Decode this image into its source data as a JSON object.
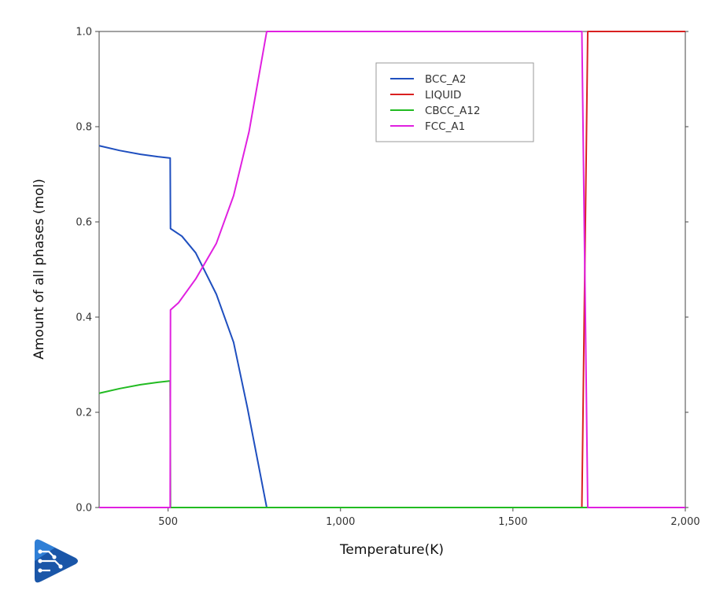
{
  "chart_data": {
    "type": "line",
    "title": "",
    "xlabel": "Temperature(K)",
    "ylabel": "Amount of all phases (mol)",
    "xlim": [
      300,
      2000
    ],
    "ylim": [
      0,
      1
    ],
    "x_ticks": [
      500,
      1000,
      1500,
      2000
    ],
    "x_tick_labels": [
      "500",
      "1,000",
      "1,500",
      "2,000"
    ],
    "y_ticks": [
      0,
      0.2,
      0.4,
      0.6,
      0.8,
      1.0
    ],
    "y_tick_labels": [
      "0.0",
      "0.2",
      "0.4",
      "0.6",
      "0.8",
      "1.0"
    ],
    "grid": false,
    "legend_position": "top-center",
    "series": [
      {
        "name": "BCC_A2",
        "color": "#1f4fbf",
        "points": [
          [
            300,
            0.76
          ],
          [
            360,
            0.75
          ],
          [
            420,
            0.742
          ],
          [
            470,
            0.737
          ],
          [
            506,
            0.734
          ],
          [
            507,
            0.586
          ],
          [
            540,
            0.57
          ],
          [
            580,
            0.535
          ],
          [
            640,
            0.448
          ],
          [
            690,
            0.347
          ],
          [
            730,
            0.21
          ],
          [
            786,
            0
          ],
          [
            2000,
            0
          ]
        ]
      },
      {
        "name": "LIQUID",
        "color": "#d92020",
        "points": [
          [
            300,
            0
          ],
          [
            1700,
            0
          ],
          [
            1717,
            1.0
          ],
          [
            2000,
            1.0
          ]
        ]
      },
      {
        "name": "CBCC_A12",
        "color": "#22bb22",
        "points": [
          [
            300,
            0.24
          ],
          [
            360,
            0.25
          ],
          [
            420,
            0.258
          ],
          [
            470,
            0.263
          ],
          [
            506,
            0.266
          ],
          [
            507,
            0
          ],
          [
            2000,
            0
          ]
        ]
      },
      {
        "name": "FCC_A1",
        "color": "#e020e0",
        "points": [
          [
            300,
            0
          ],
          [
            506,
            0
          ],
          [
            507,
            0.415
          ],
          [
            530,
            0.43
          ],
          [
            580,
            0.48
          ],
          [
            640,
            0.555
          ],
          [
            690,
            0.655
          ],
          [
            735,
            0.79
          ],
          [
            786,
            1.0
          ],
          [
            1700,
            1.0
          ],
          [
            1717,
            0
          ],
          [
            2000,
            0
          ]
        ]
      }
    ]
  }
}
